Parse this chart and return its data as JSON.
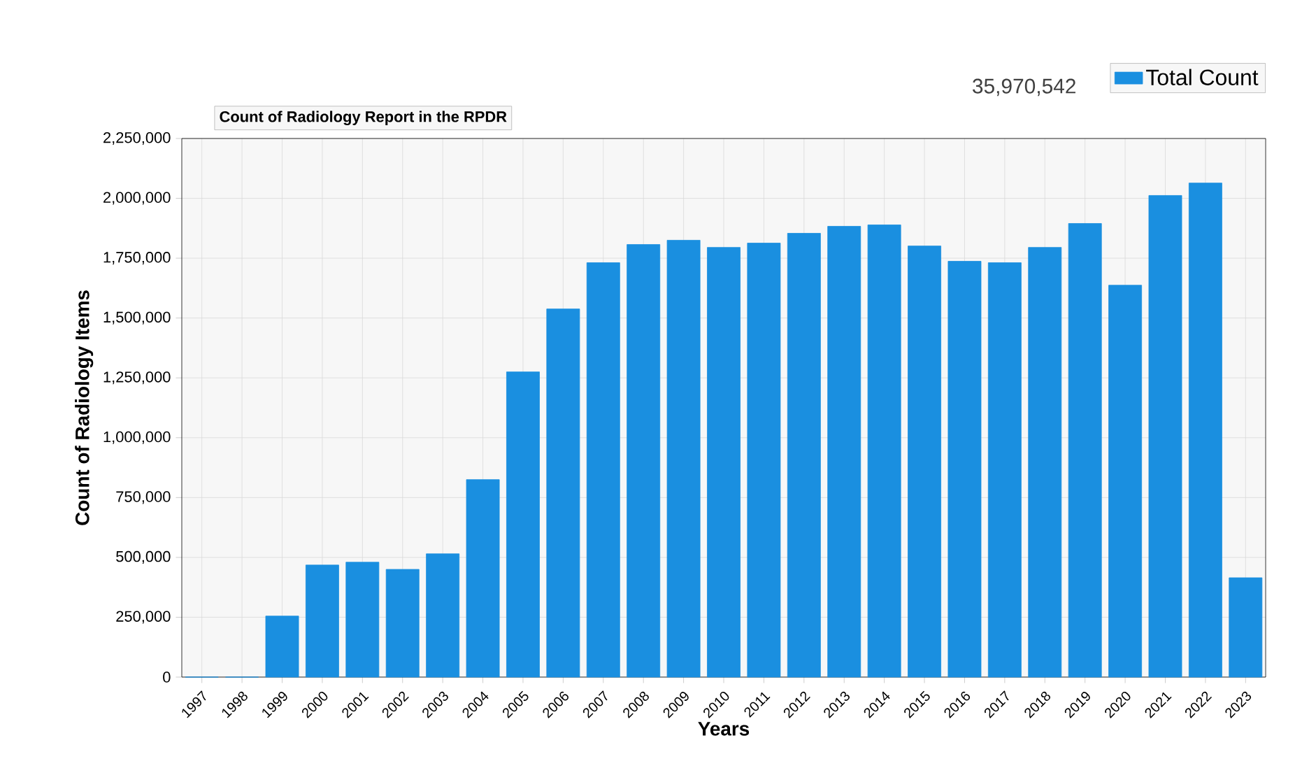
{
  "chart_data": {
    "type": "bar",
    "title": "Count of Radiology Report in the RPDR",
    "xlabel": "Years",
    "ylabel": "Count of Radiology Items",
    "categories": [
      "1997",
      "1998",
      "1999",
      "2000",
      "2001",
      "2002",
      "2003",
      "2004",
      "2005",
      "2006",
      "2007",
      "2008",
      "2009",
      "2010",
      "2011",
      "2012",
      "2013",
      "2014",
      "2015",
      "2016",
      "2017",
      "2018",
      "2019",
      "2020",
      "2021",
      "2022",
      "2023"
    ],
    "series": [
      {
        "name": "Total Count",
        "color": "#1a8fe0",
        "values": [
          0,
          0,
          255000,
          468000,
          480000,
          450000,
          515000,
          825000,
          1275000,
          1538000,
          1731000,
          1807000,
          1825000,
          1795000,
          1813000,
          1854000,
          1883000,
          1889000,
          1801000,
          1737000,
          1731000,
          1795000,
          1895000,
          1637000,
          2012000,
          2064000,
          415000
        ]
      }
    ],
    "annotations": [
      "35,970,542"
    ],
    "ylim": [
      0,
      2250000
    ],
    "yticks": [
      {
        "value": 0,
        "label": "0"
      },
      {
        "value": 250000,
        "label": "250,000"
      },
      {
        "value": 500000,
        "label": "500,000"
      },
      {
        "value": 750000,
        "label": "750,000"
      },
      {
        "value": 1000000,
        "label": "1,000,000"
      },
      {
        "value": 1250000,
        "label": "1,250,000"
      },
      {
        "value": 1500000,
        "label": "1,500,000"
      },
      {
        "value": 1750000,
        "label": "1,750,000"
      },
      {
        "value": 2000000,
        "label": "2,000,000"
      },
      {
        "value": 2250000,
        "label": "2,250,000"
      }
    ],
    "grid": true,
    "legend": "top right"
  }
}
